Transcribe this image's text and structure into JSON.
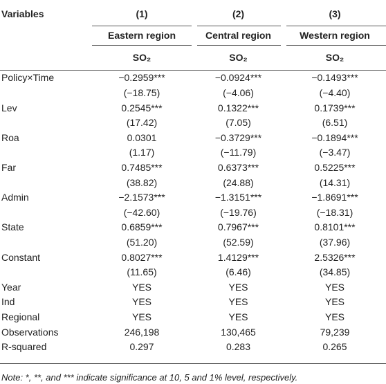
{
  "header": {
    "columns": [
      "Variables",
      "(1)",
      "(2)",
      "(3)"
    ],
    "regions": [
      "Eastern region",
      "Central region",
      "Western region"
    ],
    "dependent": [
      "SO₂",
      "SO₂",
      "SO₂"
    ]
  },
  "table": {
    "rows": [
      [
        "Policy×Time",
        "−0.2959***",
        "−0.0924***",
        "−0.1493***"
      ],
      [
        null,
        "(−18.75)",
        "(−4.06)",
        "(−4.40)"
      ],
      [
        "Lev",
        "0.2545***",
        "0.1322***",
        "0.1739***"
      ],
      [
        null,
        "(17.42)",
        "(7.05)",
        "(6.51)"
      ],
      [
        "Roa",
        "0.0301",
        "−0.3729***",
        "−0.1894***"
      ],
      [
        null,
        "(1.17)",
        "(−11.79)",
        "(−3.47)"
      ],
      [
        "Far",
        "0.7485***",
        "0.6373***",
        "0.5225***"
      ],
      [
        null,
        "(38.82)",
        "(24.88)",
        "(14.31)"
      ],
      [
        "Admin",
        "−2.1573***",
        "−1.3151***",
        "−1.8691***"
      ],
      [
        null,
        "(−42.60)",
        "(−19.76)",
        "(−18.31)"
      ],
      [
        "State",
        "0.6859***",
        "0.7967***",
        "0.8101***"
      ],
      [
        null,
        "(51.20)",
        "(52.59)",
        "(37.96)"
      ],
      [
        "Constant",
        "0.8027***",
        "1.4129***",
        "2.5326***"
      ],
      [
        null,
        "(11.65)",
        "(6.46)",
        "(34.85)"
      ],
      [
        "Year",
        "YES",
        "YES",
        "YES"
      ],
      [
        "Ind",
        "YES",
        "YES",
        "YES"
      ],
      [
        "Regional",
        "YES",
        "YES",
        "YES"
      ],
      [
        "Observations",
        "246,198",
        "130,465",
        "79,239"
      ],
      [
        "R-squared",
        "0.297",
        "0.283",
        "0.265"
      ]
    ]
  },
  "note": "Note: *, **, and *** indicate significance at 10, 5 and 1% level, respectively."
}
